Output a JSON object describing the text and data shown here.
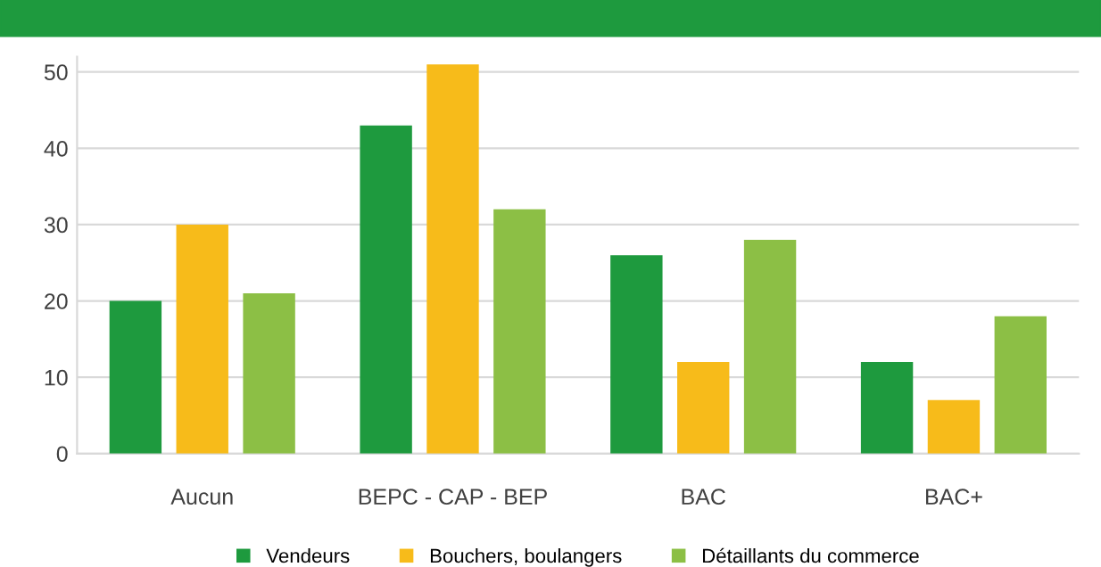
{
  "chart_data": {
    "type": "bar",
    "categories": [
      "Aucun",
      "BEPC - CAP - BEP",
      "BAC",
      "BAC+"
    ],
    "series": [
      {
        "name": "Vendeurs",
        "color": "#1e9a3e",
        "values": [
          20,
          43,
          26,
          12
        ]
      },
      {
        "name": "Bouchers, boulangers",
        "color": "#f7bb1a",
        "values": [
          30,
          51,
          12,
          7
        ]
      },
      {
        "name": "Détaillants du commerce",
        "color": "#8cbf45",
        "values": [
          21,
          32,
          28,
          18
        ]
      }
    ],
    "ylim": [
      0,
      52
    ],
    "yticks": [
      0,
      10,
      20,
      30,
      40,
      50
    ],
    "grid": "y",
    "legend": "bottom"
  }
}
